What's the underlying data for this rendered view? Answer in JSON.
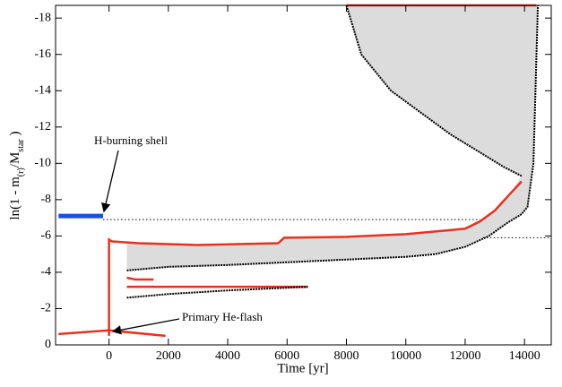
{
  "chart_data": {
    "type": "line",
    "xlabel": "Time [yr]",
    "ylabel": [
      "ln(1 - m",
      "(r)",
      "/M",
      "star",
      " )"
    ],
    "xlim": [
      -1800,
      14900
    ],
    "ylim": [
      0,
      -18.7
    ],
    "xticks": [
      0,
      2000,
      4000,
      6000,
      8000,
      10000,
      12000,
      14000
    ],
    "yticks": [
      0,
      -2,
      -4,
      -6,
      -8,
      -10,
      -12,
      -14,
      -16,
      -18
    ],
    "shaded": {
      "color": "#dcdcdc",
      "x": [
        600,
        2000,
        4000,
        6000,
        8000,
        10000,
        11000,
        12000,
        12800,
        13400,
        13900,
        14100,
        14300,
        14450,
        8000,
        8500,
        9500,
        10500,
        11500,
        12500,
        13300,
        13900,
        13500,
        13000,
        12500,
        12000,
        10000,
        8000,
        5900,
        5700,
        3000,
        1000,
        600
      ],
      "y": [
        -4.1,
        -4.3,
        -4.4,
        -4.55,
        -4.7,
        -4.85,
        -5.0,
        -5.4,
        -6.0,
        -6.7,
        -7.2,
        -7.6,
        -10,
        -18.7,
        -18.7,
        -16,
        -14,
        -12.8,
        -11.6,
        -10.6,
        -9.8,
        -9.3,
        -8.3,
        -7.4,
        -6.8,
        -6.4,
        -6.1,
        -5.95,
        -5.9,
        -5.6,
        -5.5,
        -5.6,
        -5.6
      ]
    },
    "series": [
      {
        "color": "#000000",
        "style": "dotted",
        "width": 1,
        "x": [
          -200,
          12500
        ],
        "values": [
          -6.9,
          -6.9
        ]
      },
      {
        "color": "#000000",
        "style": "dotted",
        "width": 1,
        "x": [
          12600,
          14900
        ],
        "values": [
          -5.9,
          -5.9
        ]
      },
      {
        "color": "#000000",
        "style": "solid",
        "width": 2,
        "x": [
          600,
          2000,
          4000,
          6000,
          8000,
          10000,
          11000,
          12000,
          12800,
          13400,
          13900,
          14100,
          14300,
          14450
        ],
        "values": [
          -4.1,
          -4.3,
          -4.4,
          -4.55,
          -4.7,
          -4.85,
          -5.0,
          -5.4,
          -6.0,
          -6.7,
          -7.2,
          -7.6,
          -10,
          -18.7
        ]
      },
      {
        "color": "#000000",
        "style": "solid",
        "width": 2,
        "x": [
          8000,
          8500,
          9500,
          10500,
          11500,
          12500,
          13300,
          13900
        ],
        "values": [
          -18.7,
          -16,
          -14,
          -12.8,
          -11.6,
          -10.6,
          -9.8,
          -9.3
        ]
      },
      {
        "color": "#e8321e",
        "style": "solid",
        "width": 2.5,
        "x": [
          0,
          0,
          100,
          1000,
          3000,
          5700,
          5900,
          8000,
          10000,
          12000,
          12500,
          13000,
          13500,
          13900
        ],
        "values": [
          -0.5,
          -5.8,
          -5.7,
          -5.6,
          -5.5,
          -5.6,
          -5.9,
          -5.95,
          -6.1,
          -6.4,
          -6.8,
          -7.4,
          -8.3,
          -9.0
        ]
      },
      {
        "color": "#e8321e",
        "style": "solid",
        "width": 2.5,
        "x": [
          8000,
          14400
        ],
        "values": [
          -18.7,
          -18.7
        ]
      },
      {
        "color": "#e8321e",
        "style": "solid",
        "width": 2.5,
        "x": [
          600,
          2000,
          4000,
          6700
        ],
        "values": [
          -3.2,
          -3.2,
          -3.2,
          -3.2
        ]
      },
      {
        "color": "#000000",
        "style": "solid",
        "width": 2,
        "x": [
          600,
          2000,
          4000,
          6700
        ],
        "values": [
          -2.6,
          -2.8,
          -3.0,
          -3.2
        ]
      },
      {
        "color": "#e8321e",
        "style": "solid",
        "width": 2.5,
        "x": [
          600,
          900,
          1500
        ],
        "values": [
          -3.7,
          -3.6,
          -3.6
        ]
      },
      {
        "color": "#e8321e",
        "style": "solid",
        "width": 2.5,
        "x": [
          -1700,
          0,
          1900
        ],
        "values": [
          -0.6,
          -0.8,
          -0.5
        ]
      },
      {
        "color": "#1a4fe0",
        "style": "solid",
        "width": 5,
        "x": [
          -1700,
          -200
        ],
        "values": [
          -7.1,
          -7.1
        ]
      }
    ],
    "annotations": [
      "H-burning shell",
      "Primary He-flash"
    ]
  }
}
